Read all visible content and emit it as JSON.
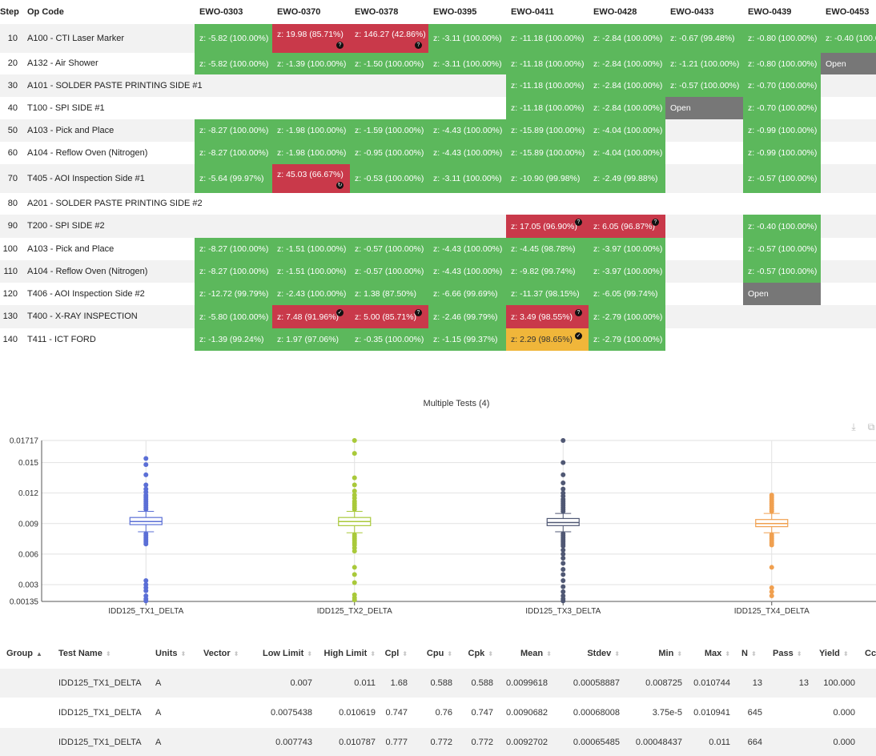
{
  "matrix": {
    "step_header": "Step",
    "op_header": "Op Code",
    "columns": [
      "EWO-0303",
      "EWO-0370",
      "EWO-0378",
      "EWO-0395",
      "EWO-0411",
      "EWO-0428",
      "EWO-0433",
      "EWO-0439",
      "EWO-0453"
    ],
    "rows": [
      {
        "step": "10",
        "op": "A100 - CTI Laser Marker",
        "cells": [
          {
            "col": 0,
            "text": "z: -5.82 (100.00%)",
            "status": "green"
          },
          {
            "col": 1,
            "text": "z: 19.98 (85.71%)",
            "status": "red",
            "badge": "?"
          },
          {
            "col": 2,
            "text": "z: 146.27 (42.86%)",
            "status": "red",
            "badge": "?"
          },
          {
            "col": 3,
            "text": "z: -3.11 (100.00%)",
            "status": "green"
          },
          {
            "col": 4,
            "text": "z: -11.18 (100.00%)",
            "status": "green"
          },
          {
            "col": 5,
            "text": "z: -2.84 (100.00%)",
            "status": "green"
          },
          {
            "col": 6,
            "text": "z: -0.67 (99.48%)",
            "status": "green"
          },
          {
            "col": 7,
            "text": "z: -0.80 (100.00%)",
            "status": "green"
          },
          {
            "col": 8,
            "text": "z: -0.40 (100.0",
            "status": "green"
          }
        ]
      },
      {
        "step": "20",
        "op": "A132 - Air Shower",
        "cells": [
          {
            "col": 0,
            "text": "z: -5.82 (100.00%)",
            "status": "green"
          },
          {
            "col": 1,
            "text": "z: -1.39 (100.00%)",
            "status": "green"
          },
          {
            "col": 2,
            "text": "z: -1.50 (100.00%)",
            "status": "green"
          },
          {
            "col": 3,
            "text": "z: -3.11 (100.00%)",
            "status": "green"
          },
          {
            "col": 4,
            "text": "z: -11.18 (100.00%)",
            "status": "green"
          },
          {
            "col": 5,
            "text": "z: -2.84 (100.00%)",
            "status": "green"
          },
          {
            "col": 6,
            "text": "z: -1.21 (100.00%)",
            "status": "green"
          },
          {
            "col": 7,
            "text": "z: -0.80 (100.00%)",
            "status": "green"
          },
          {
            "col": 8,
            "text": "Open",
            "status": "gray"
          }
        ]
      },
      {
        "step": "30",
        "op": "A101 - SOLDER PASTE PRINTING SIDE #1",
        "cells": [
          {
            "col": 4,
            "text": "z: -11.18 (100.00%)",
            "status": "green"
          },
          {
            "col": 5,
            "text": "z: -2.84 (100.00%)",
            "status": "green"
          },
          {
            "col": 6,
            "text": "z: -0.57 (100.00%)",
            "status": "green"
          },
          {
            "col": 7,
            "text": "z: -0.70 (100.00%)",
            "status": "green"
          }
        ]
      },
      {
        "step": "40",
        "op": "T100 - SPI SIDE #1",
        "cells": [
          {
            "col": 4,
            "text": "z: -11.18 (100.00%)",
            "status": "green"
          },
          {
            "col": 5,
            "text": "z: -2.84 (100.00%)",
            "status": "green"
          },
          {
            "col": 6,
            "text": "Open",
            "status": "gray"
          },
          {
            "col": 7,
            "text": "z: -0.70 (100.00%)",
            "status": "green"
          }
        ]
      },
      {
        "step": "50",
        "op": "A103 - Pick and Place",
        "cells": [
          {
            "col": 0,
            "text": "z: -8.27 (100.00%)",
            "status": "green"
          },
          {
            "col": 1,
            "text": "z: -1.98 (100.00%)",
            "status": "green"
          },
          {
            "col": 2,
            "text": "z: -1.59 (100.00%)",
            "status": "green"
          },
          {
            "col": 3,
            "text": "z: -4.43 (100.00%)",
            "status": "green"
          },
          {
            "col": 4,
            "text": "z: -15.89 (100.00%)",
            "status": "green"
          },
          {
            "col": 5,
            "text": "z: -4.04 (100.00%)",
            "status": "green"
          },
          {
            "col": 7,
            "text": "z: -0.99 (100.00%)",
            "status": "green"
          }
        ]
      },
      {
        "step": "60",
        "op": "A104 - Reflow Oven (Nitrogen)",
        "cells": [
          {
            "col": 0,
            "text": "z: -8.27 (100.00%)",
            "status": "green"
          },
          {
            "col": 1,
            "text": "z: -1.98 (100.00%)",
            "status": "green"
          },
          {
            "col": 2,
            "text": "z: -0.95 (100.00%)",
            "status": "green"
          },
          {
            "col": 3,
            "text": "z: -4.43 (100.00%)",
            "status": "green"
          },
          {
            "col": 4,
            "text": "z: -15.89 (100.00%)",
            "status": "green"
          },
          {
            "col": 5,
            "text": "z: -4.04 (100.00%)",
            "status": "green"
          },
          {
            "col": 7,
            "text": "z: -0.99 (100.00%)",
            "status": "green"
          }
        ]
      },
      {
        "step": "70",
        "op": "T405 - AOI Inspection Side #1",
        "cells": [
          {
            "col": 0,
            "text": "z: -5.64 (99.97%)",
            "status": "green"
          },
          {
            "col": 1,
            "text": "z: 45.03 (66.67%)",
            "status": "red",
            "badge": "↻"
          },
          {
            "col": 2,
            "text": "z: -0.53 (100.00%)",
            "status": "green"
          },
          {
            "col": 3,
            "text": "z: -3.11 (100.00%)",
            "status": "green"
          },
          {
            "col": 4,
            "text": "z: -10.90 (99.98%)",
            "status": "green"
          },
          {
            "col": 5,
            "text": "z: -2.49 (99.88%)",
            "status": "green"
          },
          {
            "col": 7,
            "text": "z: -0.57 (100.00%)",
            "status": "green"
          }
        ]
      },
      {
        "step": "80",
        "op": "A201 - SOLDER PASTE PRINTING SIDE #2",
        "cells": []
      },
      {
        "step": "90",
        "op": "T200 - SPI SIDE #2",
        "cells": [
          {
            "col": 4,
            "text": "z: 17.05 (96.90%)",
            "status": "red",
            "badge": "?"
          },
          {
            "col": 5,
            "text": "z: 6.05 (96.87%)",
            "status": "red",
            "badge": "?"
          },
          {
            "col": 7,
            "text": "z: -0.40 (100.00%)",
            "status": "green"
          }
        ]
      },
      {
        "step": "100",
        "op": "A103 - Pick and Place",
        "cells": [
          {
            "col": 0,
            "text": "z: -8.27 (100.00%)",
            "status": "green"
          },
          {
            "col": 1,
            "text": "z: -1.51 (100.00%)",
            "status": "green"
          },
          {
            "col": 2,
            "text": "z: -0.57 (100.00%)",
            "status": "green"
          },
          {
            "col": 3,
            "text": "z: -4.43 (100.00%)",
            "status": "green"
          },
          {
            "col": 4,
            "text": "z: -4.45 (98.78%)",
            "status": "green"
          },
          {
            "col": 5,
            "text": "z: -3.97 (100.00%)",
            "status": "green"
          },
          {
            "col": 7,
            "text": "z: -0.57 (100.00%)",
            "status": "green"
          }
        ]
      },
      {
        "step": "110",
        "op": "A104 - Reflow Oven (Nitrogen)",
        "cells": [
          {
            "col": 0,
            "text": "z: -8.27 (100.00%)",
            "status": "green"
          },
          {
            "col": 1,
            "text": "z: -1.51 (100.00%)",
            "status": "green"
          },
          {
            "col": 2,
            "text": "z: -0.57 (100.00%)",
            "status": "green"
          },
          {
            "col": 3,
            "text": "z: -4.43 (100.00%)",
            "status": "green"
          },
          {
            "col": 4,
            "text": "z: -9.82 (99.74%)",
            "status": "green"
          },
          {
            "col": 5,
            "text": "z: -3.97 (100.00%)",
            "status": "green"
          },
          {
            "col": 7,
            "text": "z: -0.57 (100.00%)",
            "status": "green"
          }
        ]
      },
      {
        "step": "120",
        "op": "T406 - AOI Inspection Side #2",
        "cells": [
          {
            "col": 0,
            "text": "z: -12.72 (99.79%)",
            "status": "green"
          },
          {
            "col": 1,
            "text": "z: -2.43 (100.00%)",
            "status": "green"
          },
          {
            "col": 2,
            "text": "z: 1.38 (87.50%)",
            "status": "green"
          },
          {
            "col": 3,
            "text": "z: -6.66 (99.69%)",
            "status": "green"
          },
          {
            "col": 4,
            "text": "z: -11.37 (98.15%)",
            "status": "green"
          },
          {
            "col": 5,
            "text": "z: -6.05 (99.74%)",
            "status": "green"
          },
          {
            "col": 7,
            "text": "Open",
            "status": "gray"
          }
        ]
      },
      {
        "step": "130",
        "op": "T400 - X-RAY INSPECTION",
        "cells": [
          {
            "col": 0,
            "text": "z: -5.80 (100.00%)",
            "status": "green"
          },
          {
            "col": 1,
            "text": "z: 7.48 (91.96%)",
            "status": "red",
            "badge": "✓"
          },
          {
            "col": 2,
            "text": "z: 5.00 (85.71%)",
            "status": "red",
            "badge": "?"
          },
          {
            "col": 3,
            "text": "z: -2.46 (99.79%)",
            "status": "green"
          },
          {
            "col": 4,
            "text": "z: 3.49 (98.55%)",
            "status": "red",
            "badge": "?"
          },
          {
            "col": 5,
            "text": "z: -2.79 (100.00%)",
            "status": "green"
          }
        ]
      },
      {
        "step": "140",
        "op": "T411 - ICT FORD",
        "cells": [
          {
            "col": 0,
            "text": "z: -1.39 (99.24%)",
            "status": "green"
          },
          {
            "col": 1,
            "text": "z: 1.97 (97.06%)",
            "status": "green"
          },
          {
            "col": 2,
            "text": "z: -0.35 (100.00%)",
            "status": "green"
          },
          {
            "col": 3,
            "text": "z: -1.15 (99.37%)",
            "status": "green"
          },
          {
            "col": 4,
            "text": "z: 2.29 (98.65%)",
            "status": "yellow",
            "badge": "✓"
          },
          {
            "col": 5,
            "text": "z: -2.79 (100.00%)",
            "status": "green"
          }
        ]
      }
    ]
  },
  "chart_data": {
    "type": "box",
    "title": "Multiple Tests (4)",
    "toolbar_icons": [
      "download-icon",
      "restore-icon"
    ],
    "y_ticks": [
      "0.00135",
      "0.003",
      "0.006",
      "0.009",
      "0.012",
      "0.015",
      "0.01717"
    ],
    "ylim": [
      0.00135,
      0.01717
    ],
    "grid": true,
    "categories": [
      "IDD125_TX1_DELTA",
      "IDD125_TX2_DELTA",
      "IDD125_TX3_DELTA",
      "IDD125_TX4_DELTA"
    ],
    "series": [
      {
        "color": "#5b6fd6",
        "box": {
          "whisker_low": 0.0082,
          "q1": 0.0089,
          "median": 0.0092,
          "q3": 0.0096,
          "whisker_high": 0.0102
        },
        "outliers": [
          0.0154,
          0.0148,
          0.0138,
          0.0128,
          0.0124,
          0.0121,
          0.0118,
          0.0116,
          0.0114,
          0.0112,
          0.011,
          0.0108,
          0.0106,
          0.0104,
          0.008,
          0.0078,
          0.0076,
          0.0074,
          0.0072,
          0.007,
          0.0034,
          0.003,
          0.0027,
          0.0024,
          0.0019,
          0.0016,
          0.0014
        ]
      },
      {
        "color": "#a9c93a",
        "box": {
          "whisker_low": 0.0081,
          "q1": 0.0088,
          "median": 0.0092,
          "q3": 0.0096,
          "whisker_high": 0.0102
        },
        "outliers": [
          0.01717,
          0.0159,
          0.0135,
          0.0128,
          0.0122,
          0.0118,
          0.0115,
          0.0112,
          0.011,
          0.0108,
          0.0106,
          0.0104,
          0.0079,
          0.0077,
          0.0075,
          0.0073,
          0.0071,
          0.0069,
          0.0066,
          0.0063,
          0.0047,
          0.004,
          0.0032,
          0.002,
          0.0017,
          0.0015
        ]
      },
      {
        "color": "#505874",
        "box": {
          "whisker_low": 0.0082,
          "q1": 0.0088,
          "median": 0.0091,
          "q3": 0.0095,
          "whisker_high": 0.01
        },
        "outliers": [
          0.01717,
          0.015,
          0.0138,
          0.013,
          0.0124,
          0.012,
          0.0117,
          0.0114,
          0.0112,
          0.011,
          0.0108,
          0.0106,
          0.0104,
          0.0102,
          0.008,
          0.0078,
          0.0076,
          0.0074,
          0.0072,
          0.007,
          0.0068,
          0.0064,
          0.006,
          0.0056,
          0.0051,
          0.0045,
          0.004,
          0.0034,
          0.0028,
          0.0023,
          0.0019,
          0.0016,
          0.0014
        ]
      },
      {
        "color": "#f0a050",
        "box": {
          "whisker_low": 0.0081,
          "q1": 0.0087,
          "median": 0.009,
          "q3": 0.0094,
          "whisker_high": 0.01
        },
        "outliers": [
          0.0118,
          0.0116,
          0.0114,
          0.0112,
          0.011,
          0.0108,
          0.0106,
          0.0104,
          0.0102,
          0.0079,
          0.0077,
          0.0075,
          0.0073,
          0.0071,
          0.0069,
          0.0047,
          0.0027,
          0.0023,
          0.0019
        ]
      }
    ]
  },
  "stats": {
    "headers": [
      "Group",
      "Test Name",
      "Units",
      "Vector",
      "Low Limit",
      "High Limit",
      "Cpl",
      "Cpu",
      "Cpk",
      "Mean",
      "Stdev",
      "Min",
      "Max",
      "N",
      "Pass",
      "Yield",
      "Cc"
    ],
    "rows": [
      [
        "",
        "IDD125_TX1_DELTA",
        "A",
        "",
        "0.007",
        "0.011",
        "1.68",
        "0.588",
        "0.588",
        "0.0099618",
        "0.00058887",
        "0.008725",
        "0.010744",
        "13",
        "13",
        "100.000",
        ""
      ],
      [
        "",
        "IDD125_TX1_DELTA",
        "A",
        "",
        "0.0075438",
        "0.010619",
        "0.747",
        "0.76",
        "0.747",
        "0.0090682",
        "0.00068008",
        "3.75e-5",
        "0.010941",
        "645",
        "",
        "0.000",
        ""
      ],
      [
        "",
        "IDD125_TX1_DELTA",
        "A",
        "",
        "0.007743",
        "0.010787",
        "0.777",
        "0.772",
        "0.772",
        "0.0092702",
        "0.00065485",
        "0.00048437",
        "0.011",
        "664",
        "",
        "0.000",
        ""
      ]
    ]
  }
}
